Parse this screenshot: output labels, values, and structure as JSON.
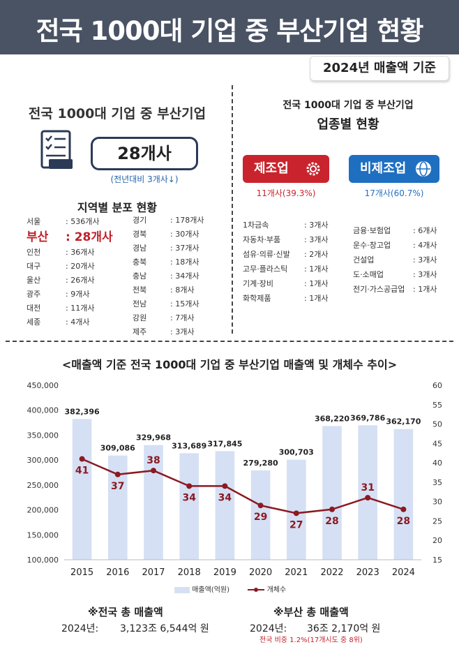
{
  "header": {
    "title": "전국 1000대 기업 중 부산기업 현황",
    "basis": "2024년 매출액 기준"
  },
  "left_panel": {
    "title": "전국 1000대 기업 중 부산기업",
    "count": "28개사",
    "yoy": "(전년대비 3개사↓)",
    "region_title": "지역별 분포 현황",
    "regions_col1": [
      {
        "name": "서울",
        "value": ": 536개사"
      },
      {
        "name": "부산",
        "value": ": 28개사"
      },
      {
        "name": "인천",
        "value": ": 36개사"
      },
      {
        "name": "대구",
        "value": ": 20개사"
      },
      {
        "name": "울산",
        "value": ": 26개사"
      },
      {
        "name": "광주",
        "value": ": 9개사"
      },
      {
        "name": "대전",
        "value": ": 11개사"
      },
      {
        "name": "세종",
        "value": ": 4개사"
      }
    ],
    "regions_col2": [
      {
        "name": "경기",
        "value": ": 178개사"
      },
      {
        "name": "경북",
        "value": ": 30개사"
      },
      {
        "name": "경남",
        "value": ": 37개사"
      },
      {
        "name": "충북",
        "value": ": 18개사"
      },
      {
        "name": "충남",
        "value": ": 34개사"
      },
      {
        "name": "전북",
        "value": ": 8개사"
      },
      {
        "name": "전남",
        "value": ": 15개사"
      },
      {
        "name": "강원",
        "value": ": 7개사"
      },
      {
        "name": "제주",
        "value": ": 3개사"
      }
    ]
  },
  "right_panel": {
    "title1": "전국 1000대 기업 중 부산기업",
    "title2": "업종별 현황",
    "manufacturing": {
      "label": "제조업",
      "pct": "11개사(39.3%)",
      "color": "#c9242d",
      "items": [
        {
          "name": "1차금속",
          "value": ": 3개사"
        },
        {
          "name": "자동차·부품",
          "value": ": 3개사"
        },
        {
          "name": "섬유·의류·신발",
          "value": ": 2개사"
        },
        {
          "name": "고무·플라스틱",
          "value": ": 1개사"
        },
        {
          "name": "기계·장비",
          "value": ": 1개사"
        },
        {
          "name": "화학제품",
          "value": ": 1개사"
        }
      ]
    },
    "non_manufacturing": {
      "label": "비제조업",
      "pct": "17개사(60.7%)",
      "color": "#1f6fc1",
      "items": [
        {
          "name": "금융·보험업",
          "value": ": 6개사"
        },
        {
          "name": "운수·창고업",
          "value": ": 4개사"
        },
        {
          "name": "건설업",
          "value": ": 3개사"
        },
        {
          "name": "도·소매업",
          "value": ": 3개사"
        },
        {
          "name": "전기·가스공급업",
          "value": ": 1개사"
        }
      ]
    }
  },
  "chart_data": {
    "type": "bar",
    "title": "<매출액 기준 전국 1000대 기업 중 부산기업 매출액 및 개체수 추이>",
    "categories": [
      "2015",
      "2016",
      "2017",
      "2018",
      "2019",
      "2020",
      "2021",
      "2022",
      "2023",
      "2024"
    ],
    "series": [
      {
        "name": "매출액(억원)",
        "type": "bar",
        "axis": "left",
        "values": [
          382396,
          309086,
          329968,
          313689,
          317845,
          279280,
          300703,
          368220,
          369786,
          362170
        ],
        "labels": [
          "382,396",
          "309,086",
          "329,968",
          "313,689",
          "317,845",
          "279,280",
          "300,703",
          "368,220",
          "369,786",
          "362,170"
        ],
        "color": "#d6e0f4"
      },
      {
        "name": "개체수",
        "type": "line",
        "axis": "right",
        "values": [
          41,
          37,
          38,
          34,
          34,
          29,
          27,
          28,
          31,
          28
        ],
        "color": "#8b1a22"
      }
    ],
    "y_left": {
      "min": 100000,
      "max": 450000,
      "ticks": [
        "100,000",
        "150,000",
        "200,000",
        "250,000",
        "300,000",
        "350,000",
        "400,000",
        "450,000"
      ]
    },
    "y_right": {
      "min": 15,
      "max": 60,
      "ticks": [
        "15",
        "20",
        "25",
        "30",
        "35",
        "40",
        "45",
        "50",
        "55",
        "60"
      ]
    },
    "grid": false,
    "legend": "bottom"
  },
  "notes": {
    "national_title": "※전국 총 매출액",
    "national_year": "2024년:",
    "national_value": "3,123조 6,544억 원",
    "busan_title": "※부산 총 매출액",
    "busan_year": "2024년:",
    "busan_value": "36조 2,170억 원",
    "busan_sub": "전국 비중 1.2%(17개시도 중 8위)"
  }
}
